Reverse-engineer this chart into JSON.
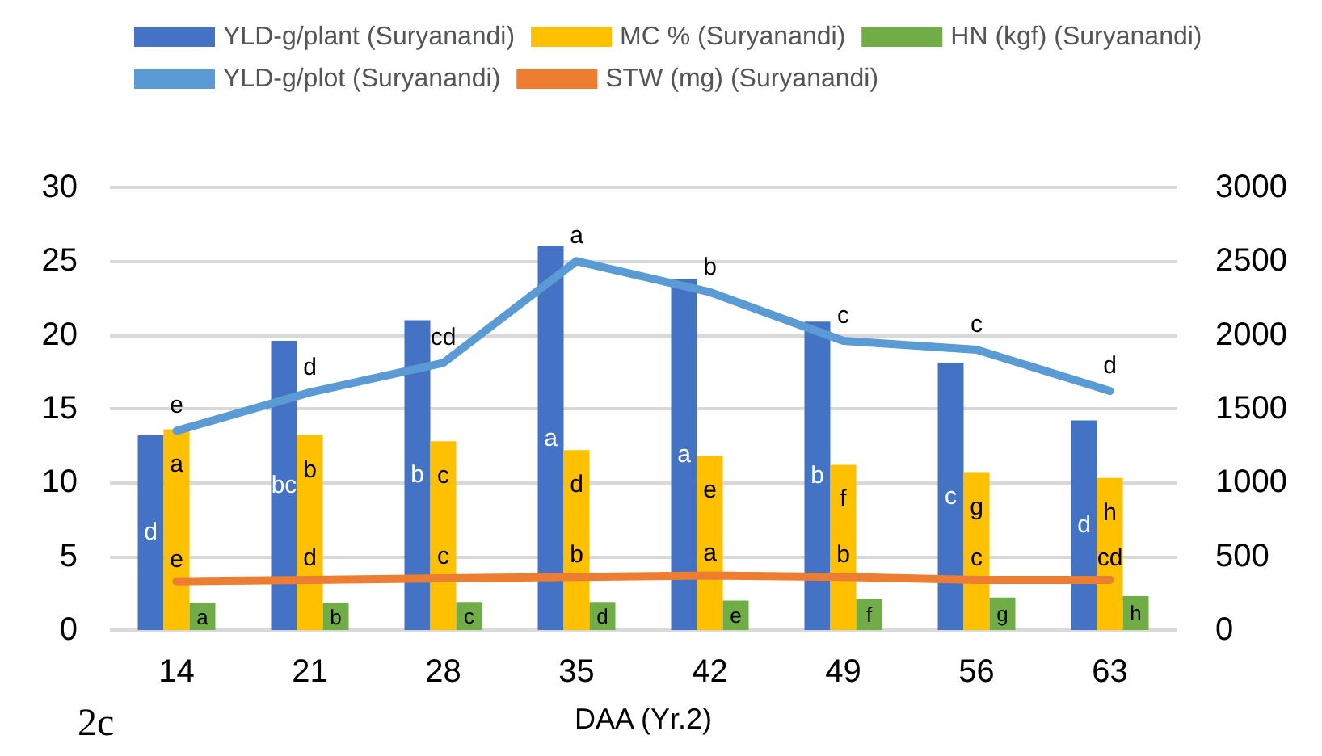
{
  "chart_data": {
    "type": "bar",
    "xlabel": "DAA (Yr.2)",
    "categories": [
      "14",
      "21",
      "28",
      "35",
      "42",
      "49",
      "56",
      "63"
    ],
    "series": [
      {
        "name": "YLD-g/plant (Suryanandi)",
        "color": "#4472c4",
        "values": [
          13.2,
          19.6,
          21.0,
          26.0,
          23.8,
          20.9,
          18.1,
          14.2
        ],
        "value_labels": [
          "d",
          "bc",
          "b",
          "a",
          "a",
          "b",
          "c",
          "d"
        ]
      },
      {
        "name": "MC % (Suryanandi)",
        "color": "#ffc000",
        "values": [
          13.6,
          13.2,
          12.8,
          12.2,
          11.8,
          11.2,
          10.7,
          10.3
        ],
        "value_labels": [
          "a",
          "b",
          "c",
          "d",
          "e",
          "f",
          "g",
          "h"
        ]
      },
      {
        "name": "HN (kgf) (Suryanandi)",
        "color": "#70ad47",
        "values": [
          1.8,
          1.8,
          1.9,
          1.9,
          2.0,
          2.1,
          2.2,
          2.3
        ],
        "value_labels": [
          "a",
          "b",
          "c",
          "d",
          "e",
          "f",
          "g",
          "h"
        ]
      },
      {
        "name": "YLD-g/plot (Suryanandi)",
        "type": "line",
        "axis": "y2",
        "color": "#5b9bd5",
        "values": [
          1350,
          1610,
          1810,
          2500,
          2290,
          1960,
          1900,
          1620
        ],
        "value_labels": [
          "e",
          "d",
          "cd",
          "a",
          "b",
          "c",
          "c",
          "d"
        ]
      },
      {
        "name": "STW (mg) (Suryanandi)",
        "type": "line",
        "axis": "y2",
        "color": "#ed7d31",
        "values": [
          330,
          340,
          350,
          360,
          370,
          360,
          340,
          340
        ],
        "value_labels": [
          "e",
          "d",
          "c",
          "b",
          "a",
          "b",
          "c",
          "cd"
        ]
      }
    ],
    "ylim": [
      0,
      30
    ],
    "yticks": [
      0,
      5,
      10,
      15,
      20,
      25,
      30
    ],
    "y2lim": [
      0,
      3000
    ],
    "y2ticks": [
      0,
      500,
      1000,
      1500,
      2000,
      2500,
      3000
    ],
    "grid": "y",
    "legend": "top",
    "marker": "none",
    "annotations": [
      "2c"
    ]
  }
}
